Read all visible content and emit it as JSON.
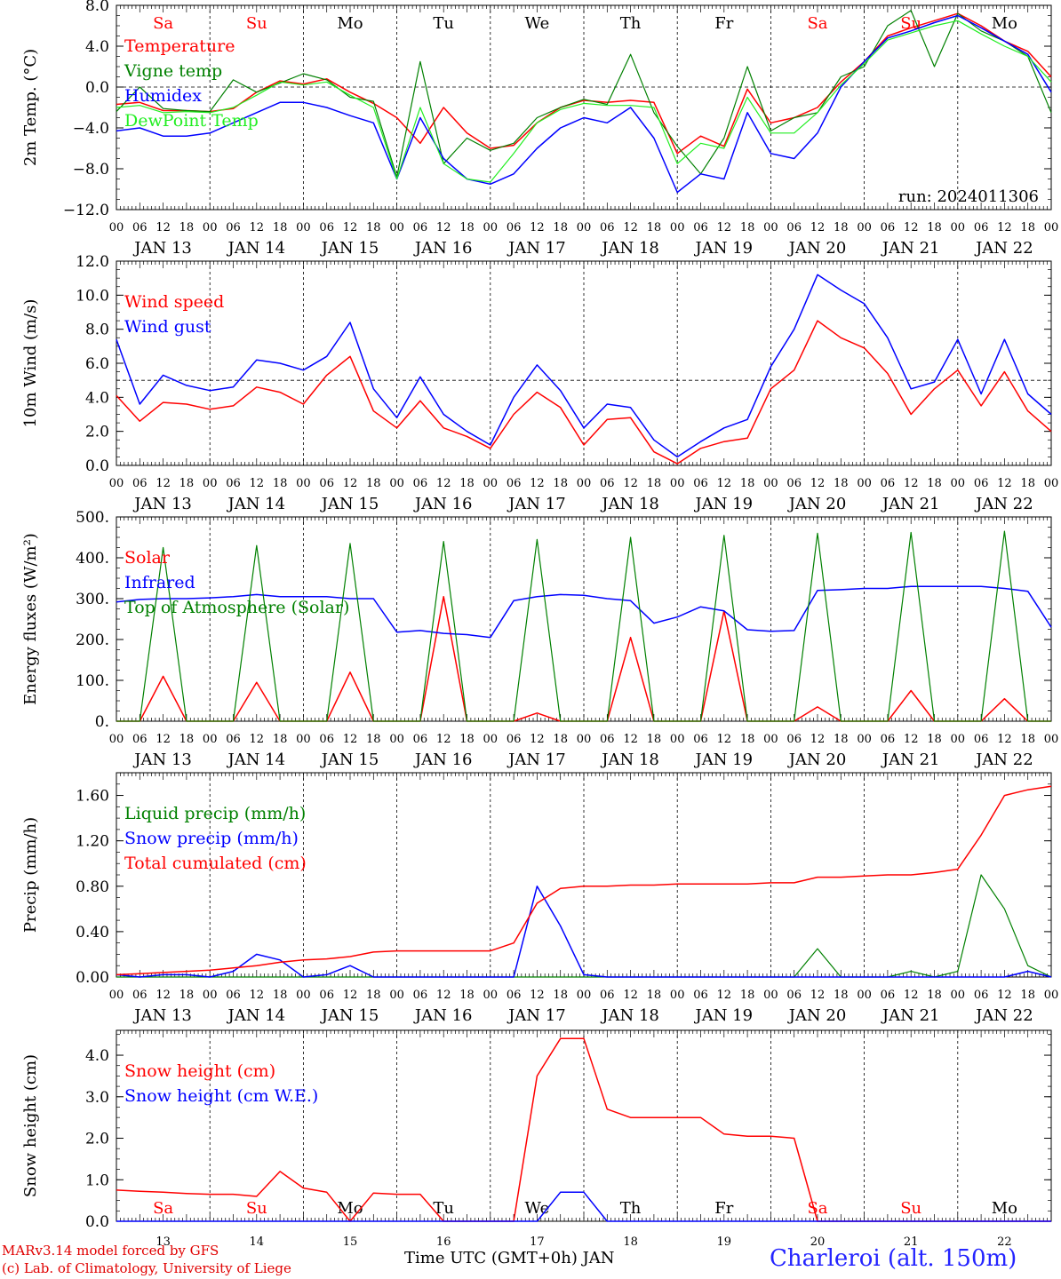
{
  "run_label": "run: 2024011306",
  "footer": {
    "credit_line1": "MARv3.14 model forced by GFS",
    "credit_line2": "(c) Lab. of Climatology, University of Liege",
    "xlabel": "Time UTC (GMT+0h) JAN",
    "station": "Charleroi (alt. 150m)"
  },
  "colors": {
    "red": "#ff0000",
    "green": "#008000",
    "blue": "#0000ff",
    "lightgreen": "#22ee22",
    "weekend": "#ff0000"
  },
  "time_axis": {
    "hour_ticks": [
      "00",
      "06",
      "12",
      "18"
    ],
    "date_labels": [
      "JAN 13",
      "JAN 14",
      "JAN 15",
      "JAN 16",
      "JAN 17",
      "JAN 18",
      "JAN 19",
      "JAN 20",
      "JAN 21",
      "JAN 22"
    ],
    "bottom_day_numbers": [
      "13",
      "14",
      "15",
      "16",
      "17",
      "18",
      "19",
      "20",
      "21",
      "22"
    ],
    "weekdays": [
      "Sa",
      "Su",
      "Mo",
      "Tu",
      "We",
      "Th",
      "Fr",
      "Sa",
      "Su",
      "Mo"
    ],
    "weekend_flags": [
      true,
      true,
      false,
      false,
      false,
      false,
      false,
      true,
      true,
      false
    ]
  },
  "chart_data": [
    {
      "id": "temp",
      "type": "line",
      "ylabel": "2m Temp. (°C)",
      "ylim": [
        -12,
        8
      ],
      "yticks": [
        "−12.0",
        "−8.0",
        "−4.0",
        "0.0",
        "4.0",
        "8.0"
      ],
      "ytick_values": [
        -12,
        -8,
        -4,
        0,
        4,
        8
      ],
      "reference_line": 0,
      "show_weekdays_top": true,
      "show_run_label": true,
      "x_days": [
        0,
        0.25,
        0.5,
        0.75,
        1,
        1.25,
        1.5,
        1.75,
        2,
        2.25,
        2.5,
        2.75,
        3,
        3.25,
        3.5,
        3.75,
        4,
        4.25,
        4.5,
        4.75,
        5,
        5.25,
        5.5,
        5.75,
        6,
        6.25,
        6.5,
        6.75,
        7,
        7.25,
        7.5,
        7.75,
        8,
        8.25,
        8.5,
        8.75,
        9,
        9.25,
        9.5,
        9.75,
        10
      ],
      "series": [
        {
          "name": "Temperature",
          "color": "red",
          "values": [
            -1.7,
            -1.5,
            -2.3,
            -2.3,
            -2.4,
            -2.1,
            -0.5,
            0.6,
            0.3,
            0.8,
            -0.5,
            -1.6,
            -3.0,
            -5.5,
            -2.0,
            -4.5,
            -6.0,
            -5.7,
            -3.5,
            -2.0,
            -1.3,
            -1.5,
            -1.3,
            -1.5,
            -6.5,
            -4.8,
            -5.8,
            -0.2,
            -3.5,
            -3.0,
            -2.0,
            0.5,
            2.5,
            5.0,
            5.8,
            6.5,
            7.2,
            6.0,
            4.5,
            3.5,
            1.0
          ]
        },
        {
          "name": "Vigne temp",
          "color": "green",
          "values": [
            -2.4,
            0.0,
            -2.1,
            -2.3,
            -2.4,
            0.7,
            -0.5,
            0.4,
            1.3,
            0.7,
            -1.0,
            -1.4,
            -8.8,
            2.5,
            -7.5,
            -5.0,
            -6.2,
            -5.5,
            -3.0,
            -2.0,
            -1.2,
            -1.7,
            3.2,
            -2.5,
            -5.8,
            -8.5,
            -5.0,
            2.0,
            -4.3,
            -3.0,
            -2.5,
            1.0,
            2.0,
            6.0,
            7.5,
            2.0,
            7.2,
            5.5,
            4.5,
            3.0,
            -2.5
          ]
        },
        {
          "name": "Humidex",
          "color": "blue",
          "values": [
            -4.3,
            -4.0,
            -4.8,
            -4.8,
            -4.5,
            -3.5,
            -2.5,
            -1.5,
            -1.5,
            -2.0,
            -2.8,
            -3.5,
            -9.0,
            -3.0,
            -7.0,
            -9.0,
            -9.5,
            -8.5,
            -6.0,
            -4.0,
            -3.0,
            -3.5,
            -2.0,
            -5.0,
            -10.3,
            -8.5,
            -9.0,
            -2.5,
            -6.5,
            -7.0,
            -4.5,
            0.0,
            2.5,
            4.8,
            5.5,
            6.3,
            7.0,
            5.8,
            4.5,
            3.2,
            -0.5
          ]
        },
        {
          "name": "DewPoint Temp",
          "color": "lightgreen",
          "values": [
            -2.0,
            -1.8,
            -2.5,
            -2.4,
            -2.5,
            -2.0,
            -0.8,
            0.5,
            0.2,
            0.5,
            -0.8,
            -2.0,
            -9.0,
            -2.0,
            -7.5,
            -9.0,
            -9.3,
            -6.5,
            -3.5,
            -2.2,
            -1.6,
            -1.8,
            -1.8,
            -2.0,
            -7.5,
            -5.5,
            -6.0,
            -1.0,
            -4.5,
            -4.5,
            -2.5,
            0.2,
            2.3,
            4.6,
            5.3,
            6.0,
            6.5,
            5.2,
            4.0,
            3.0,
            0.5
          ]
        }
      ]
    },
    {
      "id": "wind",
      "type": "line",
      "ylabel": "10m Wind (m/s)",
      "ylim": [
        0,
        12
      ],
      "yticks": [
        "0.0",
        "2.0",
        "4.0",
        "6.0",
        "8.0",
        "10.0",
        "12.0"
      ],
      "ytick_values": [
        0,
        2,
        4,
        6,
        8,
        10,
        12
      ],
      "reference_line": 5,
      "x_days": [
        0,
        0.25,
        0.5,
        0.75,
        1,
        1.25,
        1.5,
        1.75,
        2,
        2.25,
        2.5,
        2.75,
        3,
        3.25,
        3.5,
        3.75,
        4,
        4.25,
        4.5,
        4.75,
        5,
        5.25,
        5.5,
        5.75,
        6,
        6.25,
        6.5,
        6.75,
        7,
        7.25,
        7.5,
        7.75,
        8,
        8.25,
        8.5,
        8.75,
        9,
        9.25,
        9.5,
        9.75,
        10
      ],
      "series": [
        {
          "name": "Wind speed",
          "color": "red",
          "values": [
            4.1,
            2.6,
            3.7,
            3.6,
            3.3,
            3.5,
            4.6,
            4.3,
            3.6,
            5.3,
            6.4,
            3.2,
            2.2,
            3.8,
            2.2,
            1.7,
            1.0,
            3.0,
            4.3,
            3.4,
            1.2,
            2.7,
            2.8,
            0.8,
            0.1,
            1.0,
            1.4,
            1.6,
            4.5,
            5.6,
            8.5,
            7.5,
            6.9,
            5.4,
            3.0,
            4.5,
            5.6,
            3.5,
            5.5,
            3.2,
            2.0
          ]
        },
        {
          "name": "Wind gust",
          "color": "blue",
          "values": [
            7.4,
            3.6,
            5.3,
            4.7,
            4.4,
            4.6,
            6.2,
            6.0,
            5.6,
            6.4,
            8.4,
            4.5,
            2.8,
            5.2,
            3.0,
            2.0,
            1.2,
            4.0,
            5.9,
            4.4,
            2.2,
            3.6,
            3.4,
            1.5,
            0.5,
            1.4,
            2.2,
            2.7,
            5.8,
            8.0,
            11.2,
            10.3,
            9.5,
            7.5,
            4.5,
            4.9,
            7.4,
            4.2,
            7.4,
            4.2,
            3.0
          ]
        }
      ]
    },
    {
      "id": "energy",
      "type": "line",
      "ylabel": "Energy fluxes (W/m²)",
      "ylim": [
        0,
        500
      ],
      "yticks": [
        "0.",
        "100.",
        "200.",
        "300.",
        "400.",
        "500."
      ],
      "ytick_values": [
        0,
        100,
        200,
        300,
        400,
        500
      ],
      "x_days": [
        0,
        0.25,
        0.5,
        0.75,
        1,
        1.25,
        1.5,
        1.75,
        2,
        2.25,
        2.5,
        2.75,
        3,
        3.25,
        3.5,
        3.75,
        4,
        4.25,
        4.5,
        4.75,
        5,
        5.25,
        5.5,
        5.75,
        6,
        6.25,
        6.5,
        6.75,
        7,
        7.25,
        7.5,
        7.75,
        8,
        8.25,
        8.5,
        8.75,
        9,
        9.25,
        9.5,
        9.75,
        10
      ],
      "series": [
        {
          "name": "Solar",
          "color": "red",
          "values": [
            0,
            0,
            110,
            0,
            0,
            0,
            95,
            0,
            0,
            0,
            120,
            0,
            0,
            0,
            305,
            0,
            0,
            0,
            20,
            0,
            0,
            0,
            205,
            0,
            0,
            0,
            270,
            0,
            0,
            0,
            35,
            0,
            0,
            0,
            75,
            0,
            0,
            0,
            55,
            0,
            0
          ]
        },
        {
          "name": "Infrared",
          "color": "blue",
          "values": [
            292,
            298,
            300,
            300,
            302,
            305,
            310,
            305,
            305,
            305,
            300,
            300,
            218,
            222,
            215,
            212,
            205,
            295,
            305,
            310,
            308,
            300,
            295,
            240,
            255,
            280,
            270,
            224,
            220,
            222,
            320,
            322,
            325,
            325,
            330,
            330,
            330,
            330,
            325,
            318,
            230
          ]
        },
        {
          "name": "Top of Atmosphere (Solar)",
          "color": "green",
          "values": [
            0,
            0,
            425,
            0,
            0,
            0,
            430,
            0,
            0,
            0,
            435,
            0,
            0,
            0,
            440,
            0,
            0,
            0,
            445,
            0,
            0,
            0,
            450,
            0,
            0,
            0,
            455,
            0,
            0,
            0,
            460,
            0,
            0,
            0,
            462,
            0,
            0,
            0,
            465,
            0,
            0
          ]
        }
      ]
    },
    {
      "id": "precip",
      "type": "line",
      "ylabel": "Precip (mm/h)",
      "ylim": [
        0,
        1.8
      ],
      "yticks": [
        "0.00",
        "0.40",
        "0.80",
        "1.20",
        "1.60"
      ],
      "ytick_values": [
        0,
        0.4,
        0.8,
        1.2,
        1.6
      ],
      "x_days": [
        0,
        0.25,
        0.5,
        0.75,
        1,
        1.25,
        1.5,
        1.75,
        2,
        2.25,
        2.5,
        2.75,
        3,
        3.25,
        3.5,
        3.75,
        4,
        4.25,
        4.5,
        4.75,
        5,
        5.25,
        5.5,
        5.75,
        6,
        6.25,
        6.5,
        6.75,
        7,
        7.25,
        7.5,
        7.75,
        8,
        8.25,
        8.5,
        8.75,
        9,
        9.25,
        9.5,
        9.75,
        10
      ],
      "series": [
        {
          "name": "Liquid precip (mm/h)",
          "color": "green",
          "values": [
            0,
            0,
            0,
            0,
            0,
            0,
            0,
            0,
            0,
            0,
            0,
            0,
            0,
            0,
            0,
            0,
            0,
            0,
            0,
            0,
            0,
            0,
            0,
            0,
            0,
            0,
            0,
            0,
            0,
            0,
            0.25,
            0,
            0,
            0,
            0.05,
            0,
            0.05,
            0.9,
            0.6,
            0.1,
            0
          ]
        },
        {
          "name": "Snow precip (mm/h)",
          "color": "blue",
          "values": [
            0.02,
            0,
            0.02,
            0.02,
            0,
            0.05,
            0.2,
            0.15,
            0,
            0.02,
            0.1,
            0,
            0,
            0,
            0,
            0,
            0,
            0,
            0.8,
            0.45,
            0.02,
            0,
            0,
            0,
            0,
            0,
            0,
            0,
            0,
            0,
            0,
            0,
            0,
            0,
            0,
            0,
            0,
            0,
            0,
            0.05,
            0
          ]
        },
        {
          "name": "Total cumulated (cm)",
          "color": "red",
          "values": [
            0.02,
            0.03,
            0.04,
            0.05,
            0.06,
            0.08,
            0.1,
            0.13,
            0.15,
            0.16,
            0.18,
            0.22,
            0.23,
            0.23,
            0.23,
            0.23,
            0.23,
            0.3,
            0.65,
            0.78,
            0.8,
            0.8,
            0.81,
            0.81,
            0.82,
            0.82,
            0.82,
            0.82,
            0.83,
            0.83,
            0.88,
            0.88,
            0.89,
            0.9,
            0.9,
            0.92,
            0.95,
            1.25,
            1.6,
            1.65,
            1.68
          ]
        }
      ]
    },
    {
      "id": "snow",
      "type": "line",
      "ylabel": "Snow height (cm)",
      "ylim": [
        0,
        4.6
      ],
      "yticks": [
        "0.0",
        "1.0",
        "2.0",
        "3.0",
        "4.0"
      ],
      "ytick_values": [
        0,
        1,
        2,
        3,
        4
      ],
      "weekday_row_bottom": true,
      "x_days": [
        0,
        0.25,
        0.5,
        0.75,
        1,
        1.25,
        1.5,
        1.75,
        2,
        2.25,
        2.5,
        2.75,
        3,
        3.25,
        3.5,
        3.75,
        4,
        4.25,
        4.5,
        4.75,
        5,
        5.25,
        5.5,
        5.75,
        6,
        6.25,
        6.5,
        6.75,
        7,
        7.25,
        7.5,
        7.75,
        8,
        8.25,
        8.5,
        8.75,
        9,
        9.25,
        9.5,
        9.75,
        10
      ],
      "series": [
        {
          "name": "Snow height (cm)",
          "color": "red",
          "values": [
            0.75,
            0.72,
            0.7,
            0.67,
            0.65,
            0.65,
            0.6,
            1.2,
            0.8,
            0.7,
            0,
            0.68,
            0.65,
            0.65,
            0,
            0,
            0,
            0,
            3.5,
            4.4,
            4.4,
            2.7,
            2.5,
            2.5,
            2.5,
            2.5,
            2.1,
            2.05,
            2.05,
            2.0,
            0,
            0,
            0,
            0,
            0,
            0,
            0,
            0,
            0,
            0,
            0
          ]
        },
        {
          "name": "Snow height (cm W.E.)",
          "color": "blue",
          "values": [
            0,
            0,
            0,
            0,
            0,
            0,
            0,
            0,
            0,
            0,
            0,
            0,
            0,
            0,
            0,
            0,
            0,
            0,
            0,
            0.7,
            0.7,
            0,
            0,
            0,
            0,
            0,
            0,
            0,
            0,
            0,
            0,
            0,
            0,
            0,
            0,
            0,
            0,
            0,
            0,
            0,
            0
          ]
        }
      ]
    }
  ]
}
